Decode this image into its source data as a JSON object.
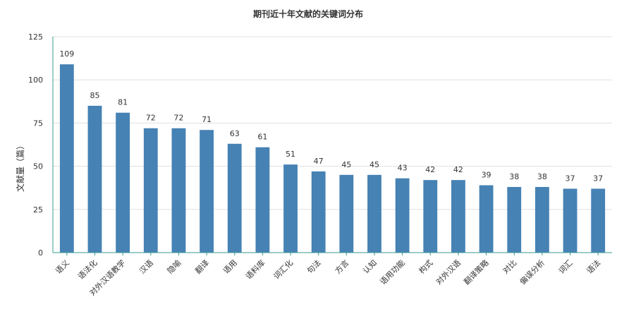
{
  "chart_data": {
    "type": "bar",
    "title": "期刊近十年文献的关键词分布",
    "xlabel": "",
    "ylabel": "文献量（篇）",
    "ylim": [
      0,
      125
    ],
    "yticks": [
      0,
      25,
      50,
      75,
      100,
      125
    ],
    "grid": true,
    "bar_color": "#4682b4",
    "categories": [
      "语义",
      "语法化",
      "对外汉语教学",
      "汉语",
      "隐喻",
      "翻译",
      "语用",
      "语料库",
      "词汇化",
      "句法",
      "方言",
      "认知",
      "语用功能",
      "构式",
      "对外汉语",
      "翻译策略",
      "对比",
      "偏误分析",
      "词汇",
      "语法"
    ],
    "values": [
      109,
      85,
      81,
      72,
      72,
      71,
      63,
      61,
      51,
      47,
      45,
      45,
      43,
      42,
      42,
      39,
      38,
      38,
      37,
      37
    ]
  }
}
